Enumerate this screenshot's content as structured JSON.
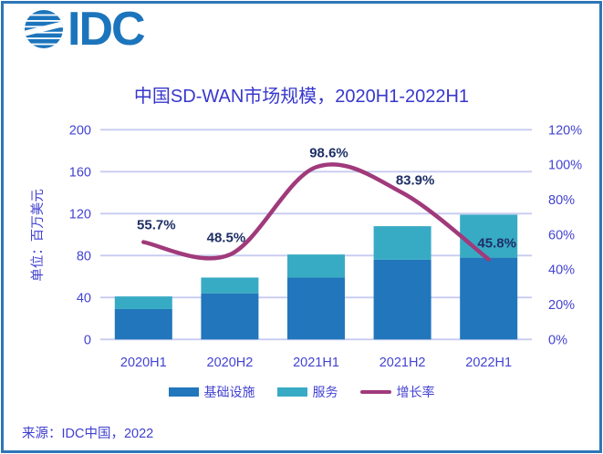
{
  "logo": {
    "text": "IDC"
  },
  "header": {
    "title": "中国SD-WAN市场规模，2020H1-2022H1"
  },
  "chart_data": {
    "type": "bar",
    "subtype": "stacked-bars-with-growth-line",
    "title": "中国SD-WAN市场规模，2020H1-2022H1",
    "categories": [
      "2020H1",
      "2020H2",
      "2021H1",
      "2021H2",
      "2022H1"
    ],
    "series": [
      {
        "name": "基础设施",
        "type": "bar",
        "stack": true,
        "axis": "left",
        "values": [
          29,
          44,
          59,
          76,
          78
        ],
        "color": "#2176bc"
      },
      {
        "name": "服务",
        "type": "bar",
        "stack": true,
        "axis": "left",
        "values": [
          12,
          15,
          22,
          32,
          41
        ],
        "color": "#38abc4"
      },
      {
        "name": "增长率",
        "type": "line",
        "axis": "right",
        "values": [
          55.7,
          48.5,
          98.6,
          83.9,
          45.8
        ],
        "labels": [
          "55.7%",
          "48.5%",
          "98.6%",
          "83.9%",
          "45.8%"
        ],
        "color": "#a03a7b"
      }
    ],
    "left_axis": {
      "title": "单位：百万美元",
      "min": 0,
      "max": 200,
      "step": 40,
      "ticks": [
        "0",
        "40",
        "80",
        "120",
        "160",
        "200"
      ]
    },
    "right_axis": {
      "min": 0,
      "max": 120,
      "step": 20,
      "suffix": "%",
      "ticks": [
        "0%",
        "20%",
        "40%",
        "60%",
        "80%",
        "100%",
        "120%"
      ]
    },
    "grid": true,
    "legend_position": "bottom",
    "colors": {
      "axis_text": "#4343d2",
      "data_label": "#1e2f66",
      "gridline": "#c7cbf0",
      "title_text": "#3737ce",
      "frame_border": "#2e76b8",
      "logo_blue": "#1c75bc"
    }
  },
  "footer": {
    "source": "来源：IDC中国，2022"
  }
}
